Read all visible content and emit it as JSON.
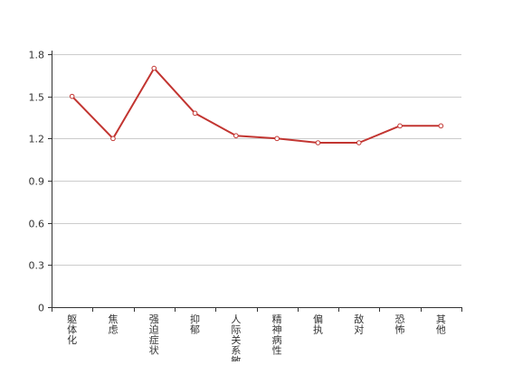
{
  "colors": {
    "line": "#c23531",
    "grid": "#cccccc",
    "axis": "#333333",
    "text": "#333333"
  },
  "chart_data": {
    "type": "line",
    "title": "",
    "xlabel": "",
    "ylabel": "",
    "grid": true,
    "ylim": [
      0,
      1.8
    ],
    "yticks": [
      "0",
      "0.3",
      "0.6",
      "0.9",
      "1.2",
      "1.5",
      "1.8"
    ],
    "categories": [
      "躯体化",
      "焦虑",
      "强迫症状",
      "抑郁",
      "人际关系敏感",
      "精神病性",
      "偏执",
      "敌对",
      "恐怖",
      "其他"
    ],
    "series": [
      {
        "values": [
          1.5,
          1.2,
          1.7,
          1.38,
          1.22,
          1.2,
          1.17,
          1.17,
          1.29,
          1.29
        ]
      }
    ]
  }
}
